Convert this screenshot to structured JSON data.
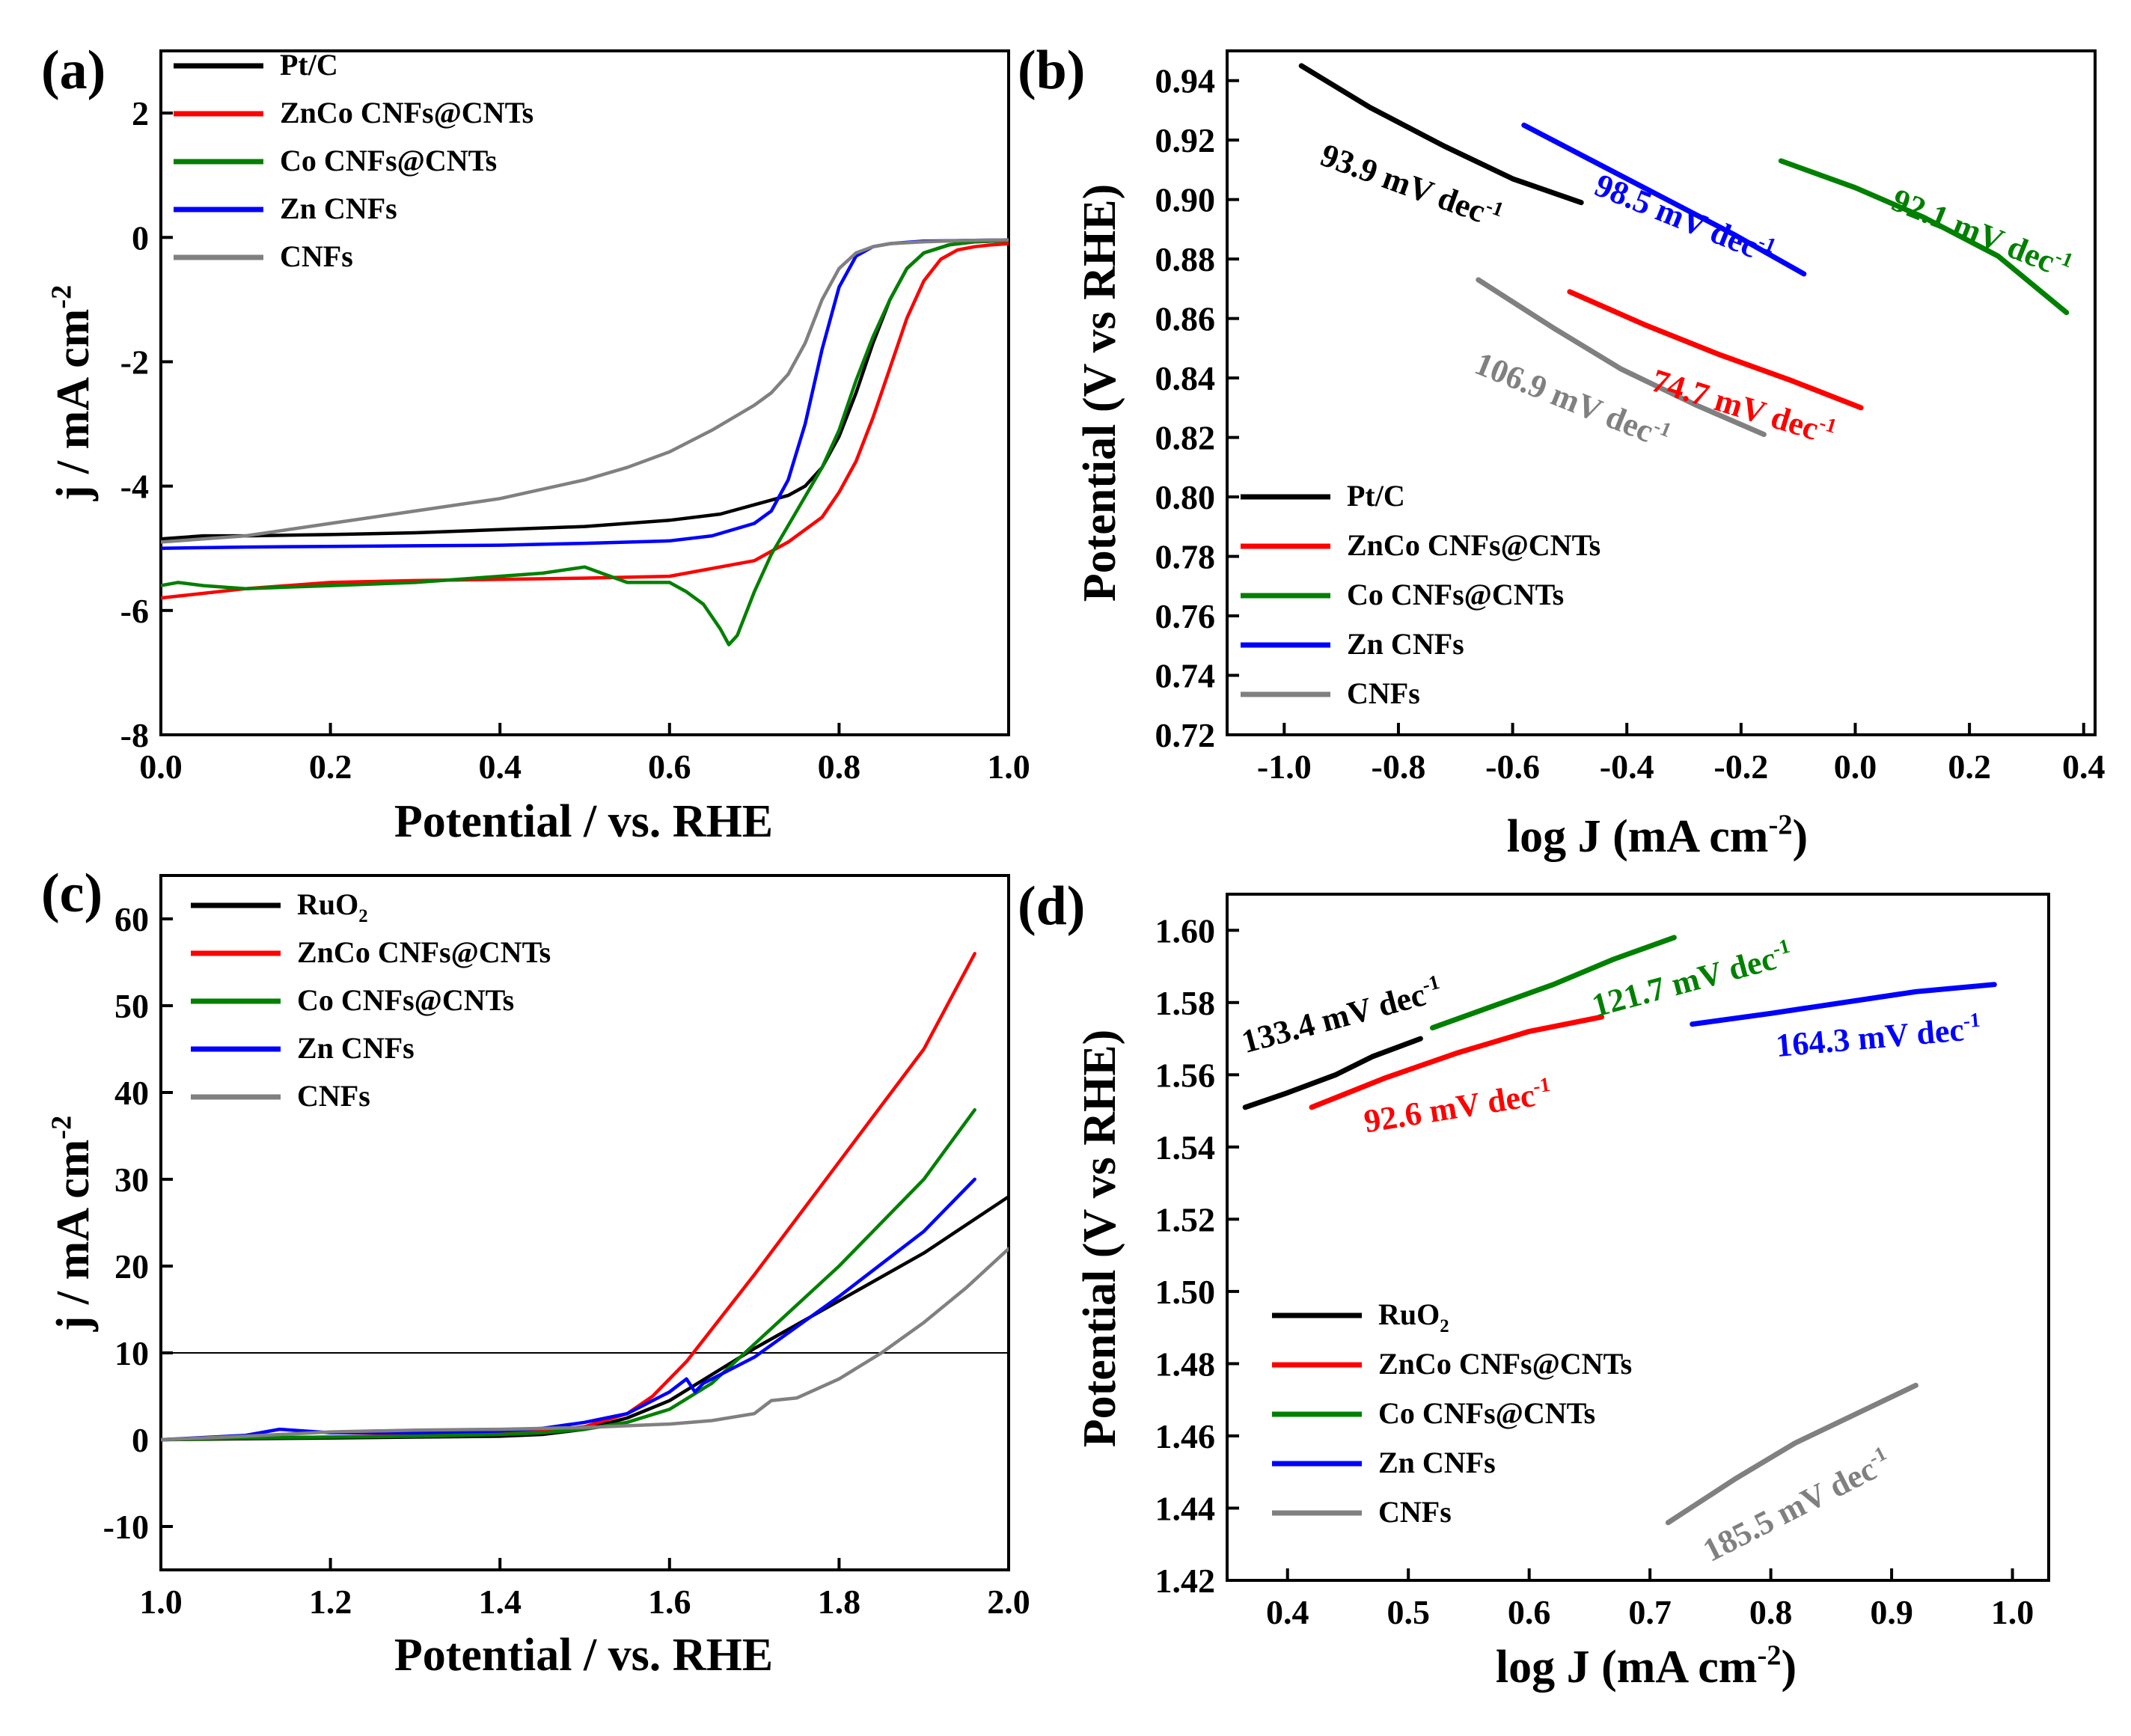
{
  "chart_data": [
    {
      "panel": "(a)",
      "type": "line",
      "xlabel": "Potential / vs. RHE",
      "ylabel": "j / mA cm",
      "ylabel_sup": "-2",
      "xlim": [
        0.0,
        1.0
      ],
      "ylim": [
        -8,
        3
      ],
      "xticks": [
        "0.0",
        "0.2",
        "0.4",
        "0.6",
        "0.8",
        "1.0"
      ],
      "xtick_values": [
        0.0,
        0.2,
        0.4,
        0.6,
        0.8,
        1.0
      ],
      "yticks": [
        "-8",
        "-6",
        "-4",
        "-2",
        "0",
        "2"
      ],
      "ytick_values": [
        -8,
        -6,
        -4,
        -2,
        0,
        2
      ],
      "legend_position": "top-left",
      "series": [
        {
          "name": "Pt/C",
          "color": "#000000",
          "x": [
            0.0,
            0.05,
            0.1,
            0.2,
            0.3,
            0.4,
            0.5,
            0.6,
            0.66,
            0.7,
            0.74,
            0.76,
            0.78,
            0.8,
            0.82,
            0.84,
            0.86,
            0.88,
            0.9,
            0.93,
            0.96,
            1.0
          ],
          "y": [
            -4.85,
            -4.8,
            -4.8,
            -4.78,
            -4.75,
            -4.7,
            -4.65,
            -4.55,
            -4.45,
            -4.3,
            -4.15,
            -4.0,
            -3.7,
            -3.2,
            -2.5,
            -1.7,
            -1.0,
            -0.5,
            -0.25,
            -0.12,
            -0.07,
            -0.05
          ]
        },
        {
          "name": "ZnCo CNFs@CNTs",
          "color": "#ff0000",
          "x": [
            0.0,
            0.1,
            0.2,
            0.3,
            0.4,
            0.5,
            0.6,
            0.7,
            0.74,
            0.78,
            0.8,
            0.82,
            0.84,
            0.86,
            0.88,
            0.9,
            0.92,
            0.94,
            0.96,
            0.98,
            1.0
          ],
          "y": [
            -5.8,
            -5.65,
            -5.55,
            -5.52,
            -5.5,
            -5.48,
            -5.45,
            -5.2,
            -4.9,
            -4.5,
            -4.1,
            -3.6,
            -2.9,
            -2.1,
            -1.3,
            -0.7,
            -0.35,
            -0.2,
            -0.15,
            -0.12,
            -0.1
          ]
        },
        {
          "name": "Co CNFs@CNTs",
          "color": "#008000",
          "x": [
            0.0,
            0.02,
            0.05,
            0.1,
            0.2,
            0.3,
            0.4,
            0.45,
            0.5,
            0.52,
            0.55,
            0.6,
            0.62,
            0.64,
            0.66,
            0.67,
            0.68,
            0.7,
            0.72,
            0.75,
            0.78,
            0.8,
            0.82,
            0.84,
            0.86,
            0.88,
            0.9,
            0.93,
            0.96,
            1.0
          ],
          "y": [
            -5.6,
            -5.55,
            -5.6,
            -5.65,
            -5.6,
            -5.55,
            -5.45,
            -5.4,
            -5.3,
            -5.4,
            -5.55,
            -5.55,
            -5.7,
            -5.9,
            -6.3,
            -6.55,
            -6.4,
            -5.7,
            -5.1,
            -4.4,
            -3.7,
            -3.1,
            -2.3,
            -1.6,
            -1.0,
            -0.5,
            -0.25,
            -0.12,
            -0.07,
            -0.05
          ]
        },
        {
          "name": "Zn CNFs",
          "color": "#0000ff",
          "x": [
            0.0,
            0.1,
            0.2,
            0.3,
            0.4,
            0.5,
            0.6,
            0.65,
            0.7,
            0.72,
            0.74,
            0.76,
            0.78,
            0.8,
            0.82,
            0.84,
            0.86,
            0.88,
            0.9,
            0.95,
            1.0
          ],
          "y": [
            -5.0,
            -4.98,
            -4.97,
            -4.96,
            -4.95,
            -4.92,
            -4.88,
            -4.8,
            -4.6,
            -4.4,
            -3.9,
            -3.0,
            -1.8,
            -0.8,
            -0.3,
            -0.15,
            -0.1,
            -0.08,
            -0.06,
            -0.05,
            -0.04
          ]
        },
        {
          "name": "CNFs",
          "color": "#808080",
          "x": [
            0.0,
            0.1,
            0.2,
            0.3,
            0.4,
            0.5,
            0.55,
            0.6,
            0.65,
            0.7,
            0.72,
            0.74,
            0.76,
            0.78,
            0.8,
            0.82,
            0.84,
            0.86,
            0.9,
            0.95,
            1.0
          ],
          "y": [
            -4.9,
            -4.8,
            -4.6,
            -4.4,
            -4.2,
            -3.9,
            -3.7,
            -3.45,
            -3.1,
            -2.7,
            -2.5,
            -2.2,
            -1.7,
            -1.0,
            -0.5,
            -0.25,
            -0.15,
            -0.1,
            -0.07,
            -0.05,
            -0.04
          ]
        }
      ]
    },
    {
      "panel": "(b)",
      "type": "line",
      "xlabel": "log J (mA cm",
      "xlabel_sup": "-2",
      "xlabel_tail": ")",
      "ylabel": "Potential (V vs RHE)",
      "xlim": [
        -1.1,
        0.42
      ],
      "ylim": [
        0.72,
        0.95
      ],
      "xticks": [
        "-1.0",
        "-0.8",
        "-0.6",
        "-0.4",
        "-0.2",
        "0.0",
        "0.2",
        "0.4"
      ],
      "xtick_values": [
        -1.0,
        -0.8,
        -0.6,
        -0.4,
        -0.2,
        0.0,
        0.2,
        0.4
      ],
      "yticks": [
        "0.72",
        "0.74",
        "0.76",
        "0.78",
        "0.80",
        "0.82",
        "0.84",
        "0.86",
        "0.88",
        "0.90",
        "0.92",
        "0.94"
      ],
      "ytick_values": [
        0.72,
        0.74,
        0.76,
        0.78,
        0.8,
        0.82,
        0.84,
        0.86,
        0.88,
        0.9,
        0.92,
        0.94
      ],
      "legend_position": "bottom-left",
      "series": [
        {
          "name": "Pt/C",
          "color": "#000000",
          "x": [
            -0.97,
            -0.85,
            -0.72,
            -0.6,
            -0.48
          ],
          "y": [
            0.945,
            0.931,
            0.918,
            0.907,
            0.899
          ],
          "tafel": "93.9 mV dec",
          "sup": "-1",
          "label_x": -0.94,
          "label_y": 0.912,
          "angle": 20
        },
        {
          "name": "ZnCo CNFs@CNTs",
          "color": "#ff0000",
          "x": [
            -0.5,
            -0.37,
            -0.24,
            -0.11,
            0.01
          ],
          "y": [
            0.869,
            0.858,
            0.848,
            0.839,
            0.83
          ],
          "tafel": "74.7 mV dec",
          "sup": "-1",
          "label_x": -0.36,
          "label_y": 0.836,
          "angle": 17
        },
        {
          "name": "Co CNFs@CNTs",
          "color": "#008000",
          "x": [
            -0.13,
            0.0,
            0.12,
            0.25,
            0.37
          ],
          "y": [
            0.913,
            0.904,
            0.894,
            0.881,
            0.862
          ],
          "tafel": "92.1 mV dec",
          "sup": "-1",
          "label_x": 0.06,
          "label_y": 0.897,
          "angle": 22
        },
        {
          "name": "Zn CNFs",
          "color": "#0000ff",
          "x": [
            -0.58,
            -0.46,
            -0.34,
            -0.21,
            -0.09
          ],
          "y": [
            0.925,
            0.913,
            0.901,
            0.888,
            0.875
          ],
          "tafel": "98.5 mV dec",
          "sup": "-1",
          "label_x": -0.46,
          "label_y": 0.902,
          "angle": 22
        },
        {
          "name": "CNFs",
          "color": "#808080",
          "x": [
            -0.66,
            -0.53,
            -0.41,
            -0.28,
            -0.16
          ],
          "y": [
            0.873,
            0.857,
            0.843,
            0.831,
            0.821
          ],
          "tafel": "106.9 mV dec",
          "sup": "-1",
          "label_x": -0.67,
          "label_y": 0.842,
          "angle": 22
        }
      ]
    },
    {
      "panel": "(c)",
      "type": "line",
      "xlabel": "Potential / vs. RHE",
      "ylabel": "j / mA cm",
      "ylabel_sup": "-2",
      "xlim": [
        1.0,
        2.0
      ],
      "ylim": [
        -15,
        65
      ],
      "xticks": [
        "1.0",
        "1.2",
        "1.4",
        "1.6",
        "1.8",
        "2.0"
      ],
      "xtick_values": [
        1.0,
        1.2,
        1.4,
        1.6,
        1.8,
        2.0
      ],
      "yticks": [
        "-10",
        "0",
        "10",
        "20",
        "30",
        "40",
        "50",
        "60"
      ],
      "ytick_values": [
        -10,
        0,
        10,
        20,
        30,
        40,
        50,
        60
      ],
      "reference_line_y": 10,
      "legend_position": "top-left",
      "legend_sub": "2",
      "series": [
        {
          "name": "RuO",
          "color": "#000000",
          "x": [
            1.0,
            1.1,
            1.2,
            1.3,
            1.4,
            1.45,
            1.5,
            1.55,
            1.6,
            1.65,
            1.7,
            1.8,
            1.9,
            2.0
          ],
          "y": [
            0.0,
            0.1,
            0.2,
            0.3,
            0.4,
            0.6,
            1.2,
            2.5,
            4.5,
            7.5,
            10.5,
            16.0,
            21.5,
            28.0
          ]
        },
        {
          "name": "ZnCo CNFs@CNTs",
          "color": "#ff0000",
          "x": [
            1.0,
            1.1,
            1.2,
            1.3,
            1.4,
            1.45,
            1.5,
            1.55,
            1.58,
            1.62,
            1.66,
            1.7,
            1.8,
            1.9,
            1.96
          ],
          "y": [
            0.0,
            0.2,
            0.3,
            0.5,
            0.7,
            1.0,
            1.5,
            3.0,
            5.0,
            9.0,
            14.0,
            19.0,
            32.0,
            45.0,
            56.0
          ]
        },
        {
          "name": "Co CNFs@CNTs",
          "color": "#008000",
          "x": [
            1.0,
            1.1,
            1.2,
            1.3,
            1.4,
            1.45,
            1.5,
            1.55,
            1.6,
            1.65,
            1.7,
            1.8,
            1.9,
            1.96
          ],
          "y": [
            0.0,
            0.2,
            0.3,
            0.4,
            0.6,
            0.8,
            1.2,
            2.0,
            3.5,
            6.5,
            11.0,
            20.0,
            30.0,
            38.0
          ]
        },
        {
          "name": "Zn CNFs",
          "color": "#0000ff",
          "x": [
            1.0,
            1.1,
            1.14,
            1.2,
            1.3,
            1.4,
            1.45,
            1.5,
            1.55,
            1.6,
            1.62,
            1.63,
            1.64,
            1.7,
            1.8,
            1.9,
            1.96
          ],
          "y": [
            0.0,
            0.5,
            1.2,
            0.8,
            0.8,
            1.0,
            1.3,
            2.0,
            3.0,
            5.5,
            7.0,
            5.5,
            6.5,
            9.5,
            16.5,
            24.0,
            30.0
          ]
        },
        {
          "name": "CNFs",
          "color": "#808080",
          "x": [
            1.0,
            1.1,
            1.2,
            1.3,
            1.4,
            1.5,
            1.6,
            1.65,
            1.7,
            1.72,
            1.75,
            1.8,
            1.85,
            1.9,
            1.95,
            2.0
          ],
          "y": [
            0.0,
            0.4,
            0.9,
            1.1,
            1.2,
            1.4,
            1.8,
            2.2,
            3.0,
            4.5,
            4.8,
            7.0,
            10.0,
            13.5,
            17.5,
            22.0
          ]
        }
      ]
    },
    {
      "panel": "(d)",
      "type": "line",
      "xlabel": "log J (mA cm",
      "xlabel_sup": "-2",
      "xlabel_tail": ")",
      "ylabel": "Potential (V vs RHE)",
      "xlim": [
        0.35,
        1.03
      ],
      "ylim": [
        1.42,
        1.61
      ],
      "xticks": [
        "0.4",
        "0.5",
        "0.6",
        "0.7",
        "0.8",
        "0.9",
        "1.0"
      ],
      "xtick_values": [
        0.4,
        0.5,
        0.6,
        0.7,
        0.8,
        0.9,
        1.0
      ],
      "yticks": [
        "1.42",
        "1.44",
        "1.46",
        "1.48",
        "1.50",
        "1.52",
        "1.54",
        "1.56",
        "1.58",
        "1.60"
      ],
      "ytick_values": [
        1.42,
        1.44,
        1.46,
        1.48,
        1.5,
        1.52,
        1.54,
        1.56,
        1.58,
        1.6
      ],
      "legend_position": "bottom-left",
      "legend_sub": "2",
      "series": [
        {
          "name": "RuO",
          "color": "#000000",
          "x": [
            0.365,
            0.4,
            0.44,
            0.47,
            0.51
          ],
          "y": [
            1.551,
            1.555,
            1.56,
            1.565,
            1.57
          ],
          "tafel": "133.4 mV dec",
          "sup": "-1",
          "label_x": 0.365,
          "label_y": 1.566,
          "angle": -15
        },
        {
          "name": "ZnCo CNFs@CNTs",
          "color": "#ff0000",
          "x": [
            0.42,
            0.48,
            0.54,
            0.6,
            0.66
          ],
          "y": [
            1.551,
            1.559,
            1.566,
            1.572,
            1.576
          ],
          "tafel": "92.6 mV dec",
          "sup": "-1",
          "label_x": 0.465,
          "label_y": 1.544,
          "angle": -9
        },
        {
          "name": "Co CNFs@CNTs",
          "color": "#008000",
          "x": [
            0.52,
            0.57,
            0.62,
            0.67,
            0.72
          ],
          "y": [
            1.573,
            1.579,
            1.585,
            1.592,
            1.598
          ],
          "tafel": "121.7 mV dec",
          "sup": "-1",
          "label_x": 0.655,
          "label_y": 1.576,
          "angle": -15
        },
        {
          "name": "Zn CNFs",
          "color": "#0000ff",
          "x": [
            0.735,
            0.8,
            0.86,
            0.92,
            0.985
          ],
          "y": [
            1.574,
            1.577,
            1.58,
            1.583,
            1.585
          ],
          "tafel": "164.3 mV dec",
          "sup": "-1",
          "label_x": 0.805,
          "label_y": 1.565,
          "angle": -5
        },
        {
          "name": "CNFs",
          "color": "#808080",
          "x": [
            0.715,
            0.77,
            0.82,
            0.87,
            0.92
          ],
          "y": [
            1.436,
            1.448,
            1.458,
            1.466,
            1.474
          ],
          "tafel": "185.5 mV dec",
          "sup": "-1",
          "label_x": 0.75,
          "label_y": 1.425,
          "angle": -27
        }
      ]
    }
  ]
}
